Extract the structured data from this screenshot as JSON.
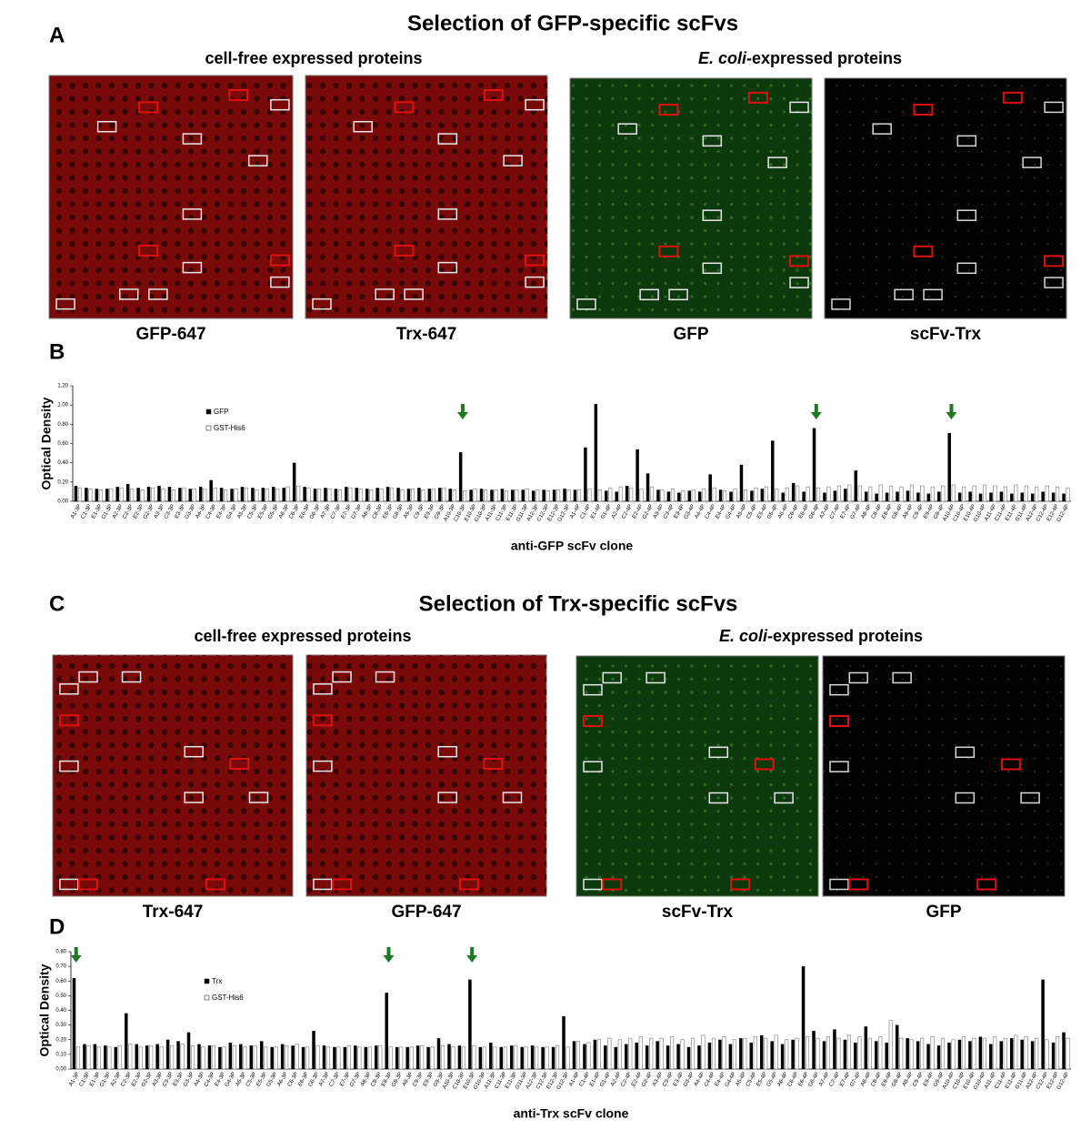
{
  "figure": {
    "section_a": {
      "letter": "A",
      "title": "Selection of GFP-specific scFvs",
      "cell_free": "cell-free expressed proteins",
      "ecoli_italic": "E. coli",
      "ecoli_rest": "-expressed proteins",
      "panels": [
        "GFP-647",
        "Trx-647",
        "GFP",
        "scFv-Trx"
      ]
    },
    "letter_b": "B",
    "section_c": {
      "letter": "C",
      "title": "Selection of Trx-specific scFvs",
      "cell_free": "cell-free expressed proteins",
      "ecoli_italic": "E. coli",
      "ecoli_rest": "-expressed proteins",
      "panels": [
        "Trx-647",
        "GFP-647",
        "scFv-Trx",
        "GFP"
      ]
    },
    "letter_d": "D"
  },
  "chart_data": [
    {
      "type": "bar",
      "y_label": "Optical Density",
      "x_label": "anti-GFP scFv clone",
      "ylim": [
        0,
        1.2
      ],
      "yticks": [
        {
          "value": 0,
          "label": "0.00"
        },
        {
          "value": 0.2,
          "label": "0.20"
        },
        {
          "value": 0.4,
          "label": "0.40"
        },
        {
          "value": 0.6,
          "label": "0.60"
        },
        {
          "value": 0.8,
          "label": "0.80"
        },
        {
          "value": 1.0,
          "label": "1.00"
        },
        {
          "value": 1.2,
          "label": "1.20"
        }
      ],
      "categories": [
        "A1-3P",
        "C1-3P",
        "E1-3P",
        "G1-3P",
        "A2-3P",
        "C2-3P",
        "E2-3P",
        "G2-3P",
        "A3-3P",
        "C3-3P",
        "E3-3P",
        "G3-3P",
        "A4-3P",
        "C4-3P",
        "E4-3P",
        "G4-3P",
        "A5-3P",
        "C5-3P",
        "E5-3P",
        "G5-3P",
        "A6-3P",
        "C6-3P",
        "E6-3P",
        "G6-3P",
        "A7-3P",
        "C7-3P",
        "E7-3P",
        "G7-3P",
        "A8-3P",
        "C8-3P",
        "E8-3P",
        "G8-3P",
        "A9-3P",
        "C9-3P",
        "E9-3P",
        "G9-3P",
        "A10-3P",
        "C10-3P",
        "E10-3P",
        "G10-3P",
        "A11-3P",
        "C11-3P",
        "E11-3P",
        "G11-3P",
        "A12-3P",
        "C12-3P",
        "E12-3P",
        "G12-3P",
        "A1-4P",
        "C1-4P",
        "E1-4P",
        "G1-4P",
        "A2-4P",
        "C2-4P",
        "E2-4P",
        "G2-4P",
        "A3-4P",
        "C3-4P",
        "E3-4P",
        "G3-4P",
        "A4-4P",
        "C4-4P",
        "E4-4P",
        "G4-4P",
        "A5-4P",
        "C5-4P",
        "E5-4P",
        "G5-4P",
        "A6-4P",
        "C6-4P",
        "E6-4P",
        "G6-4P",
        "A7-4P",
        "C7-4P",
        "E7-4P",
        "G7-4P",
        "A8-4P",
        "C8-4P",
        "E8-4P",
        "G8-4P",
        "A9-4P",
        "C9-4P",
        "E9-4P",
        "G9-4P",
        "A10-4P",
        "C10-4P",
        "E10-4P",
        "G10-4P",
        "A11-4P",
        "C11-4P",
        "E11-4P",
        "G11-4P",
        "A12-4P",
        "C12-4P",
        "E12-4P",
        "G12-4P"
      ],
      "series": [
        {
          "name": "GFP",
          "color": "#000000",
          "values": [
            0.16,
            0.14,
            0.13,
            0.13,
            0.15,
            0.18,
            0.14,
            0.15,
            0.16,
            0.15,
            0.14,
            0.13,
            0.15,
            0.22,
            0.14,
            0.13,
            0.15,
            0.14,
            0.14,
            0.15,
            0.14,
            0.4,
            0.15,
            0.13,
            0.14,
            0.13,
            0.15,
            0.14,
            0.13,
            0.14,
            0.15,
            0.14,
            0.13,
            0.14,
            0.13,
            0.14,
            0.13,
            0.51,
            0.12,
            0.13,
            0.12,
            0.13,
            0.12,
            0.12,
            0.11,
            0.12,
            0.12,
            0.13,
            0.12,
            0.56,
            1.01,
            0.11,
            0.1,
            0.16,
            0.54,
            0.29,
            0.12,
            0.1,
            0.09,
            0.11,
            0.1,
            0.28,
            0.12,
            0.1,
            0.38,
            0.11,
            0.13,
            0.63,
            0.09,
            0.19,
            0.1,
            0.76,
            0.09,
            0.11,
            0.13,
            0.32,
            0.1,
            0.08,
            0.09,
            0.1,
            0.11,
            0.09,
            0.08,
            0.1,
            0.71,
            0.09,
            0.1,
            0.08,
            0.09,
            0.1,
            0.08,
            0.09,
            0.08,
            0.1,
            0.09,
            0.08
          ]
        },
        {
          "name": "GST-His6",
          "color": "#ffffff",
          "values": [
            0.14,
            0.13,
            0.12,
            0.13,
            0.14,
            0.13,
            0.12,
            0.14,
            0.13,
            0.12,
            0.14,
            0.13,
            0.13,
            0.14,
            0.12,
            0.13,
            0.14,
            0.12,
            0.13,
            0.13,
            0.15,
            0.16,
            0.14,
            0.13,
            0.13,
            0.12,
            0.14,
            0.13,
            0.12,
            0.13,
            0.14,
            0.12,
            0.13,
            0.12,
            0.13,
            0.14,
            0.12,
            0.11,
            0.13,
            0.12,
            0.12,
            0.11,
            0.12,
            0.13,
            0.12,
            0.11,
            0.12,
            0.12,
            0.12,
            0.13,
            0.12,
            0.14,
            0.15,
            0.14,
            0.13,
            0.15,
            0.12,
            0.13,
            0.11,
            0.12,
            0.13,
            0.14,
            0.11,
            0.13,
            0.12,
            0.14,
            0.15,
            0.13,
            0.14,
            0.16,
            0.15,
            0.14,
            0.15,
            0.16,
            0.17,
            0.16,
            0.15,
            0.17,
            0.16,
            0.15,
            0.17,
            0.16,
            0.15,
            0.16,
            0.17,
            0.15,
            0.16,
            0.17,
            0.16,
            0.15,
            0.17,
            0.16,
            0.15,
            0.16,
            0.15,
            0.14
          ]
        }
      ]
    },
    {
      "type": "bar",
      "y_label": "Optical Density",
      "x_label": "anti-Trx scFv clone",
      "ylim": [
        0,
        0.8
      ],
      "yticks": [
        {
          "value": 0,
          "label": "0.00"
        },
        {
          "value": 0.1,
          "label": "0.10"
        },
        {
          "value": 0.2,
          "label": "0.20"
        },
        {
          "value": 0.3,
          "label": "0.30"
        },
        {
          "value": 0.4,
          "label": "0.40"
        },
        {
          "value": 0.5,
          "label": "0.50"
        },
        {
          "value": 0.6,
          "label": "0.60"
        },
        {
          "value": 0.7,
          "label": "0.70"
        },
        {
          "value": 0.8,
          "label": "0.80"
        }
      ],
      "categories": [
        "A1-3P",
        "C1-3P",
        "E1-3P",
        "G1-3P",
        "A2-3P",
        "C2-3P",
        "E2-3P",
        "G2-3P",
        "A3-3P",
        "C3-3P",
        "E3-3P",
        "G3-3P",
        "A4-3P",
        "C4-3P",
        "E4-3P",
        "G4-3P",
        "A5-3P",
        "C5-3P",
        "E5-3P",
        "G5-3P",
        "A6-3P",
        "C6-3P",
        "E6-3P",
        "G6-3P",
        "A7-3P",
        "C7-3P",
        "E7-3P",
        "G7-3P",
        "A8-3P",
        "C8-3P",
        "E8-3P",
        "G8-3P",
        "A9-3P",
        "C9-3P",
        "E9-3P",
        "G9-3P",
        "A10-3P",
        "C10-3P",
        "E10-3P",
        "G10-3P",
        "A11-3P",
        "C11-3P",
        "E11-3P",
        "G11-3P",
        "A12-3P",
        "C12-3P",
        "E12-3P",
        "G12-3P",
        "A1-4P",
        "C1-4P",
        "E1-4P",
        "G1-4P",
        "A2-4P",
        "C2-4P",
        "E2-4P",
        "G2-4P",
        "A3-4P",
        "C3-4P",
        "E3-4P",
        "G3-4P",
        "A4-4P",
        "C4-4P",
        "E4-4P",
        "G4-4P",
        "A5-4P",
        "C5-4P",
        "E5-4P",
        "G5-4P",
        "A6-4P",
        "C6-4P",
        "E6-4P",
        "G6-4P",
        "A7-4P",
        "C7-4P",
        "E7-4P",
        "G7-4P",
        "A8-4P",
        "C8-4P",
        "E8-4P",
        "G8-4P",
        "A9-4P",
        "C9-4P",
        "E9-4P",
        "G9-4P",
        "A10-4P",
        "C10-4P",
        "E10-4P",
        "G10-4P",
        "A11-4P",
        "C11-4P",
        "E11-4P",
        "G11-4P",
        "A12-4P",
        "C12-4P",
        "E12-4P",
        "G12-4P"
      ],
      "series": [
        {
          "name": "Trx",
          "color": "#000000",
          "values": [
            0.62,
            0.17,
            0.17,
            0.16,
            0.15,
            0.38,
            0.17,
            0.16,
            0.17,
            0.2,
            0.19,
            0.25,
            0.17,
            0.16,
            0.15,
            0.18,
            0.17,
            0.16,
            0.19,
            0.15,
            0.17,
            0.16,
            0.15,
            0.26,
            0.16,
            0.15,
            0.15,
            0.16,
            0.15,
            0.16,
            0.52,
            0.15,
            0.15,
            0.16,
            0.15,
            0.21,
            0.17,
            0.16,
            0.61,
            0.15,
            0.18,
            0.15,
            0.16,
            0.15,
            0.16,
            0.15,
            0.15,
            0.36,
            0.19,
            0.17,
            0.2,
            0.16,
            0.15,
            0.17,
            0.18,
            0.16,
            0.19,
            0.16,
            0.17,
            0.15,
            0.16,
            0.18,
            0.2,
            0.17,
            0.21,
            0.18,
            0.23,
            0.19,
            0.17,
            0.2,
            0.7,
            0.26,
            0.19,
            0.27,
            0.2,
            0.18,
            0.29,
            0.19,
            0.18,
            0.3,
            0.21,
            0.19,
            0.17,
            0.16,
            0.18,
            0.2,
            0.19,
            0.22,
            0.17,
            0.19,
            0.21,
            0.2,
            0.19,
            0.61,
            0.18,
            0.25
          ]
        },
        {
          "name": "GST-His6",
          "color": "#ffffff",
          "values": [
            0.15,
            0.16,
            0.15,
            0.15,
            0.16,
            0.17,
            0.15,
            0.16,
            0.15,
            0.16,
            0.17,
            0.16,
            0.15,
            0.16,
            0.15,
            0.16,
            0.15,
            0.16,
            0.15,
            0.15,
            0.16,
            0.17,
            0.15,
            0.16,
            0.15,
            0.15,
            0.16,
            0.15,
            0.15,
            0.16,
            0.15,
            0.15,
            0.15,
            0.16,
            0.15,
            0.16,
            0.15,
            0.15,
            0.16,
            0.15,
            0.15,
            0.15,
            0.16,
            0.15,
            0.15,
            0.15,
            0.16,
            0.15,
            0.19,
            0.18,
            0.2,
            0.21,
            0.2,
            0.21,
            0.22,
            0.21,
            0.21,
            0.22,
            0.2,
            0.21,
            0.23,
            0.21,
            0.22,
            0.2,
            0.21,
            0.22,
            0.21,
            0.23,
            0.2,
            0.21,
            0.22,
            0.21,
            0.22,
            0.21,
            0.23,
            0.22,
            0.21,
            0.22,
            0.33,
            0.21,
            0.2,
            0.21,
            0.22,
            0.21,
            0.2,
            0.22,
            0.21,
            0.21,
            0.22,
            0.21,
            0.23,
            0.22,
            0.21,
            0.2,
            0.22,
            0.21
          ]
        }
      ]
    }
  ]
}
